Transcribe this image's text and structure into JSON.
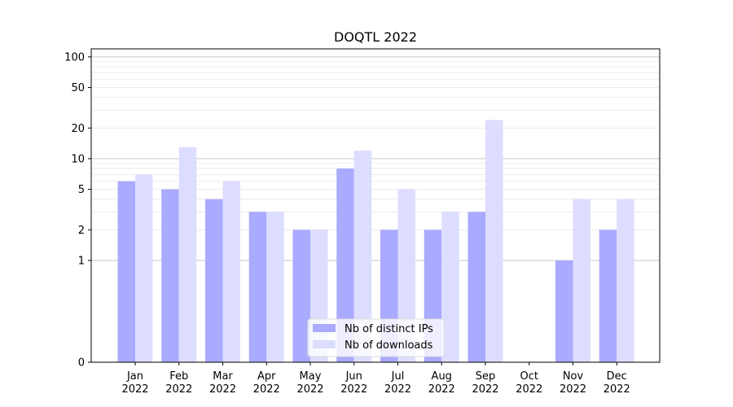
{
  "chart_data": {
    "type": "bar",
    "title": "DOQTL 2022",
    "xlabel": "",
    "ylabel": "",
    "yscale": "symlog",
    "ylim": [
      0,
      120
    ],
    "yticks": [
      0,
      1,
      2,
      5,
      10,
      20,
      50,
      100
    ],
    "categories": [
      [
        "Jan",
        "2022"
      ],
      [
        "Feb",
        "2022"
      ],
      [
        "Mar",
        "2022"
      ],
      [
        "Apr",
        "2022"
      ],
      [
        "May",
        "2022"
      ],
      [
        "Jun",
        "2022"
      ],
      [
        "Jul",
        "2022"
      ],
      [
        "Aug",
        "2022"
      ],
      [
        "Sep",
        "2022"
      ],
      [
        "Oct",
        "2022"
      ],
      [
        "Nov",
        "2022"
      ],
      [
        "Dec",
        "2022"
      ]
    ],
    "series": [
      {
        "name": "Nb of distinct IPs",
        "color": "#aaaaff",
        "values": [
          6,
          5,
          4,
          3,
          2,
          8,
          2,
          2,
          3,
          0,
          1,
          2
        ]
      },
      {
        "name": "Nb of downloads",
        "color": "#ddddff",
        "values": [
          7,
          13,
          6,
          3,
          2,
          12,
          5,
          3,
          24,
          0,
          4,
          4
        ]
      }
    ],
    "grid": true,
    "legend": "bottom-center"
  }
}
